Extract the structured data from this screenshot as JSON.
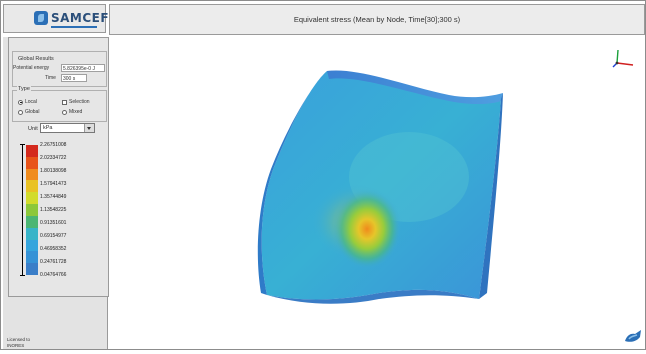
{
  "app": {
    "logo_text": "SAMCEF",
    "logo_sub": "",
    "title": "Equivalent stress (Mean by Node, Time[30];300 s)"
  },
  "global_results": {
    "title": "Global Results",
    "potential_energy_label": "Potential energy",
    "potential_energy_value": "5.826395e-0 J",
    "time_label": "Time",
    "time_value": "300 s"
  },
  "type": {
    "title": "Type",
    "options": [
      {
        "label": "Local",
        "selected": true
      },
      {
        "label": "Selection",
        "selected": false
      },
      {
        "label": "Global",
        "selected": false
      },
      {
        "label": "Mixed",
        "selected": false
      }
    ]
  },
  "unit": {
    "label": "Unit",
    "selected": "kPa"
  },
  "legend": {
    "values": [
      "2.26751008",
      "2.02334722",
      "1.80138098",
      "1.57941473",
      "1.35744849",
      "1.13548225",
      "0.91351601",
      "0.69154977",
      "0.46958352",
      "0.24761728",
      "0.04764766"
    ],
    "colors": [
      "#d42a1e",
      "#e8541a",
      "#f08c1e",
      "#e9c224",
      "#d2dc2c",
      "#8cc83a",
      "#4bb673",
      "#37b4c8",
      "#35a5dd",
      "#3592d6",
      "#3a7ec8"
    ]
  },
  "footer": {
    "licensed_line1": "Licensed to",
    "licensed_line2": "INORES"
  },
  "viewport": {
    "triad_axes": [
      "x",
      "y",
      "z"
    ]
  }
}
